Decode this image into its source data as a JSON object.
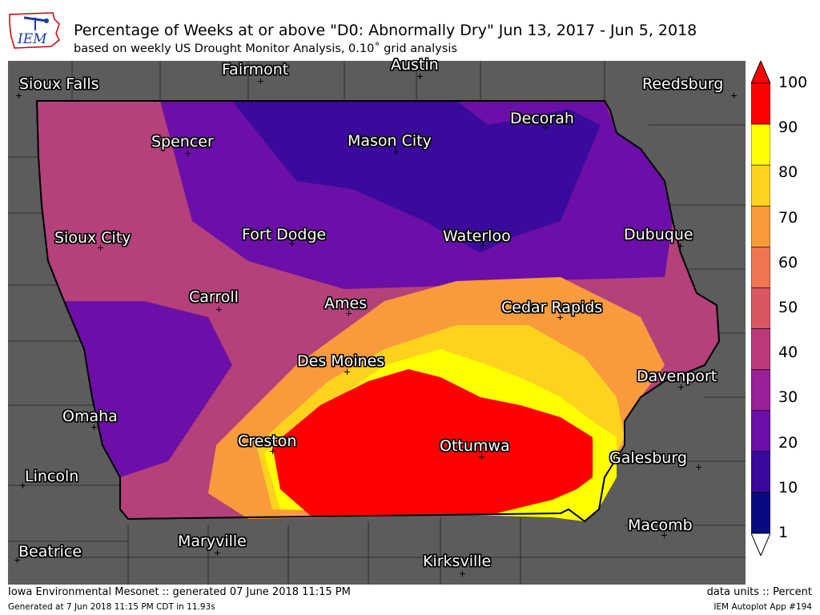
{
  "logo": {
    "text": "IEM",
    "icon": "iowa-weather-station-icon"
  },
  "title": "Percentage of Weeks at or above \"D0: Abnormally Dry\" Jun 13, 2017 - Jun 5, 2018",
  "subtitle": "based on weekly US Drought Monitor Analysis, 0.10˚ grid analysis",
  "cities": [
    {
      "name": "Sioux Falls"
    },
    {
      "name": "Fairmont"
    },
    {
      "name": "Austin"
    },
    {
      "name": "Reedsburg"
    },
    {
      "name": "Spencer"
    },
    {
      "name": "Mason City"
    },
    {
      "name": "Decorah"
    },
    {
      "name": "Sioux City"
    },
    {
      "name": "Fort Dodge"
    },
    {
      "name": "Waterloo"
    },
    {
      "name": "Dubuque"
    },
    {
      "name": "Carroll"
    },
    {
      "name": "Ames"
    },
    {
      "name": "Cedar Rapids"
    },
    {
      "name": "Des Moines"
    },
    {
      "name": "Davenport"
    },
    {
      "name": "Omaha"
    },
    {
      "name": "Creston"
    },
    {
      "name": "Ottumwa"
    },
    {
      "name": "Galesburg"
    },
    {
      "name": "Lincoln"
    },
    {
      "name": "Macomb"
    },
    {
      "name": "Maryville"
    },
    {
      "name": "Beatrice"
    },
    {
      "name": "Kirksville"
    }
  ],
  "colorbar": {
    "ticks": [
      "100",
      "90",
      "80",
      "70",
      "60",
      "50",
      "40",
      "30",
      "20",
      "10",
      "1"
    ],
    "colors": [
      "#ff0000",
      "#ffff00",
      "#ffd21e",
      "#f99b3c",
      "#ef7650",
      "#d95663",
      "#bd3a7a",
      "#9a1f98",
      "#6b0fa8",
      "#3a0a9c",
      "#0a0a80"
    ]
  },
  "footer": {
    "left1": "Iowa Environmental Mesonet :: generated 07 June 2018 11:15 PM",
    "left2": "Generated at 7 Jun 2018 11:15 PM CDT in 11.93s",
    "right1": "data units :: Percent",
    "right2": "IEM Autoplot App #194"
  }
}
